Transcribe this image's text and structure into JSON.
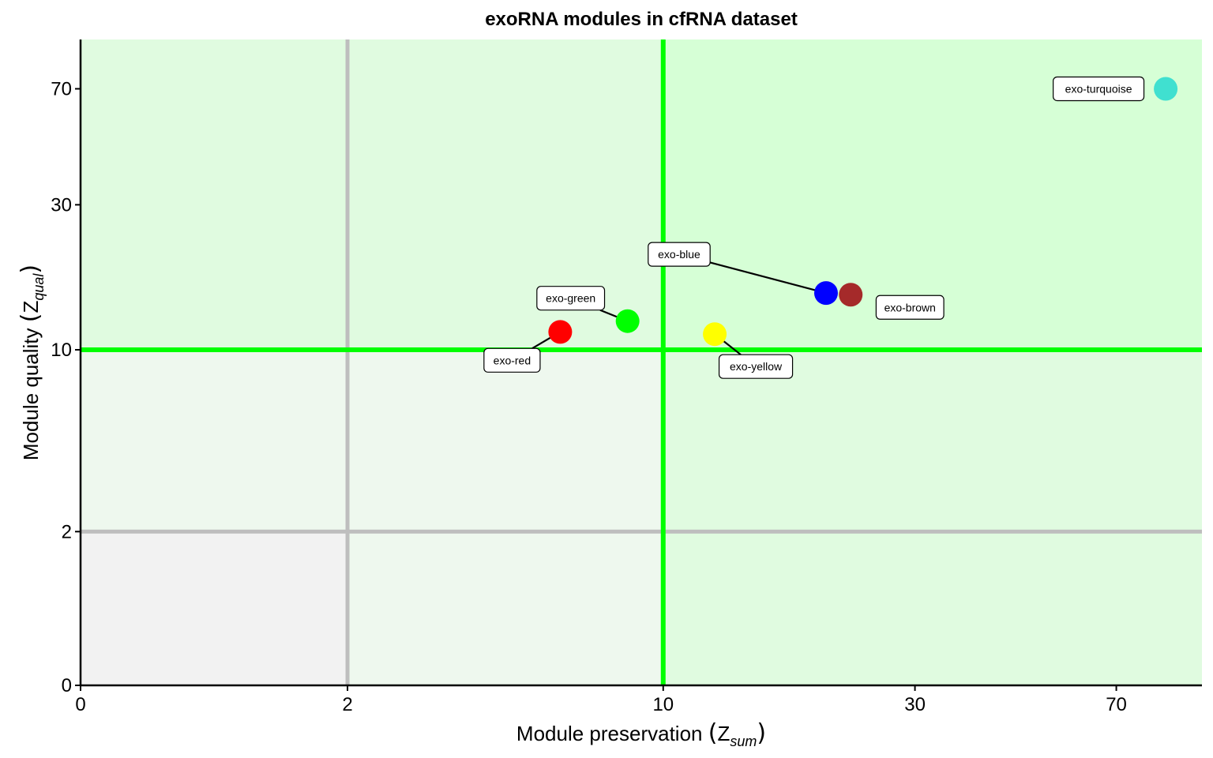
{
  "chart_data": {
    "type": "scatter",
    "title": "exoRNA modules in cfRNA dataset",
    "xlabel": {
      "main": "Module preservation",
      "symbol": "Z",
      "subscript": "sum"
    },
    "ylabel": {
      "main": "Module quality",
      "symbol": "Z",
      "subscript": "qual"
    },
    "x_ticks": [
      {
        "value": 0,
        "label": "0"
      },
      {
        "value": 2,
        "label": "2"
      },
      {
        "value": 10,
        "label": "10"
      },
      {
        "value": 30,
        "label": "30"
      },
      {
        "value": 70,
        "label": "70"
      }
    ],
    "y_ticks": [
      {
        "value": 0,
        "label": "0"
      },
      {
        "value": 2,
        "label": "2"
      },
      {
        "value": 10,
        "label": "10"
      },
      {
        "value": 30,
        "label": "30"
      },
      {
        "value": 70,
        "label": "70"
      }
    ],
    "xlim": [
      0,
      100
    ],
    "ylim": [
      0,
      100
    ],
    "scale": "pseudo-log",
    "thresholds": [
      {
        "axis": "x",
        "value": 2,
        "color": "#bebebe"
      },
      {
        "axis": "x",
        "value": 10,
        "color": "#00ff00"
      },
      {
        "axis": "y",
        "value": 2,
        "color": "#bebebe"
      },
      {
        "axis": "y",
        "value": 10,
        "color": "#00ff00"
      }
    ],
    "region_colors": {
      "low": "#f2f2f2",
      "moderate": "#eef8ee",
      "mid": "#e0fbe0",
      "high": "#d6ffd6"
    },
    "points": [
      {
        "label": "exo-turquoise",
        "x": 86,
        "y": 70,
        "color": "#40e0d0"
      },
      {
        "label": "exo-blue",
        "x": 20.5,
        "y": 15.5,
        "color": "#0000ff"
      },
      {
        "label": "exo-brown",
        "x": 22.8,
        "y": 15.3,
        "color": "#a52a2a"
      },
      {
        "label": "exo-green",
        "x": 8.5,
        "y": 12.5,
        "color": "#00ff00"
      },
      {
        "label": "exo-yellow",
        "x": 12.6,
        "y": 11.3,
        "color": "#ffff00"
      },
      {
        "label": "exo-red",
        "x": 6.2,
        "y": 11.5,
        "color": "#ff0000"
      }
    ]
  }
}
